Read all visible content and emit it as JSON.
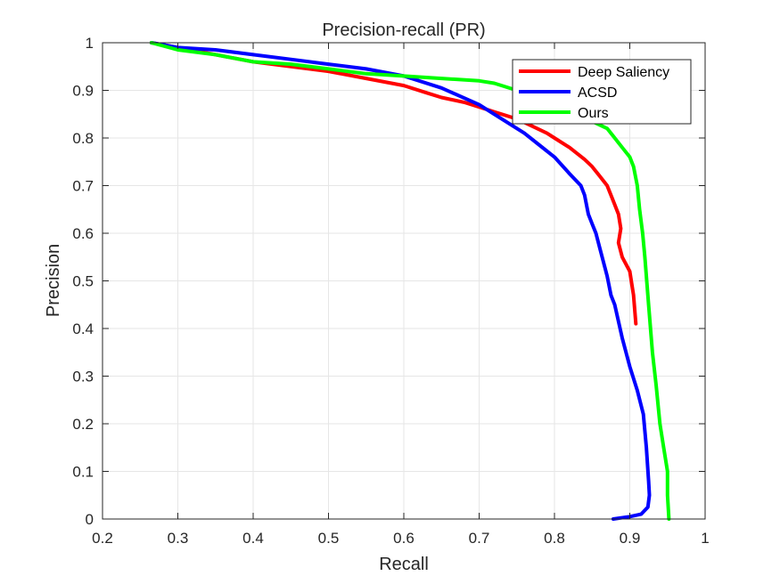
{
  "chart_data": {
    "type": "line",
    "title": "Precision-recall (PR)",
    "xlabel": "Recall",
    "ylabel": "Precision",
    "xlim": [
      0.2,
      1
    ],
    "ylim": [
      0,
      1
    ],
    "xticks": [
      "0.2",
      "0.3",
      "0.4",
      "0.5",
      "0.6",
      "0.7",
      "0.8",
      "0.9",
      "1"
    ],
    "yticks": [
      "0",
      "0.1",
      "0.2",
      "0.3",
      "0.4",
      "0.5",
      "0.6",
      "0.7",
      "0.8",
      "0.9",
      "1"
    ],
    "grid": true,
    "legend_position": "top-right",
    "series": [
      {
        "name": "Deep Saliency",
        "color": "#ff0000",
        "x": [
          0.265,
          0.3,
          0.35,
          0.4,
          0.45,
          0.5,
          0.55,
          0.6,
          0.63,
          0.65,
          0.68,
          0.7,
          0.72,
          0.75,
          0.77,
          0.79,
          0.8,
          0.82,
          0.84,
          0.85,
          0.86,
          0.87,
          0.875,
          0.88,
          0.885,
          0.888,
          0.885,
          0.89,
          0.9,
          0.905,
          0.908
        ],
        "y": [
          1.0,
          0.99,
          0.975,
          0.96,
          0.95,
          0.94,
          0.925,
          0.91,
          0.895,
          0.885,
          0.875,
          0.865,
          0.855,
          0.84,
          0.825,
          0.81,
          0.8,
          0.78,
          0.755,
          0.74,
          0.72,
          0.7,
          0.68,
          0.66,
          0.64,
          0.61,
          0.58,
          0.55,
          0.52,
          0.47,
          0.41
        ]
      },
      {
        "name": "ACSD",
        "color": "#0000ff",
        "x": [
          0.265,
          0.3,
          0.35,
          0.4,
          0.45,
          0.5,
          0.55,
          0.6,
          0.65,
          0.7,
          0.73,
          0.76,
          0.78,
          0.8,
          0.82,
          0.835,
          0.84,
          0.845,
          0.85,
          0.855,
          0.86,
          0.865,
          0.87,
          0.875,
          0.88,
          0.89,
          0.9,
          0.91,
          0.918,
          0.922,
          0.925,
          0.926,
          0.924,
          0.915,
          0.9,
          0.878
        ],
        "y": [
          1.0,
          0.99,
          0.985,
          0.975,
          0.965,
          0.955,
          0.945,
          0.93,
          0.905,
          0.87,
          0.84,
          0.81,
          0.785,
          0.76,
          0.725,
          0.7,
          0.68,
          0.64,
          0.62,
          0.6,
          0.57,
          0.54,
          0.51,
          0.47,
          0.45,
          0.38,
          0.32,
          0.27,
          0.22,
          0.15,
          0.08,
          0.05,
          0.025,
          0.01,
          0.005,
          0.0
        ]
      },
      {
        "name": "Ours",
        "color": "#00ff00",
        "x": [
          0.265,
          0.3,
          0.35,
          0.4,
          0.45,
          0.5,
          0.55,
          0.6,
          0.65,
          0.7,
          0.72,
          0.73,
          0.75,
          0.77,
          0.79,
          0.81,
          0.83,
          0.85,
          0.87,
          0.88,
          0.89,
          0.9,
          0.905,
          0.91,
          0.913,
          0.917,
          0.92,
          0.925,
          0.93,
          0.935,
          0.94,
          0.945,
          0.95,
          0.95,
          0.952
        ],
        "y": [
          1.0,
          0.985,
          0.975,
          0.96,
          0.955,
          0.945,
          0.935,
          0.93,
          0.925,
          0.92,
          0.915,
          0.91,
          0.9,
          0.89,
          0.875,
          0.855,
          0.845,
          0.835,
          0.82,
          0.8,
          0.78,
          0.76,
          0.74,
          0.7,
          0.65,
          0.6,
          0.55,
          0.45,
          0.35,
          0.28,
          0.2,
          0.15,
          0.1,
          0.05,
          0.0
        ]
      }
    ]
  }
}
